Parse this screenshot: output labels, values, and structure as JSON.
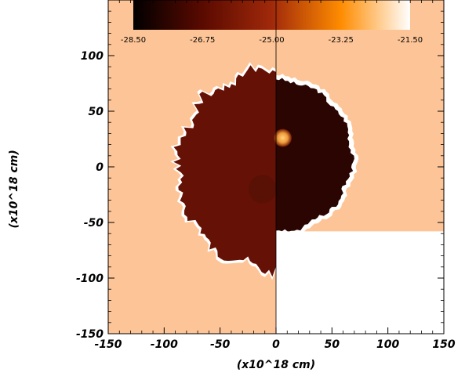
{
  "chart_data": {
    "type": "heatmap",
    "title": "",
    "xlabel": "(x10^18 cm)",
    "ylabel": "(x10^18 cm)",
    "xlim": [
      -150,
      150
    ],
    "ylim": [
      -150,
      150
    ],
    "x_ticks": [
      -150,
      -100,
      -50,
      0,
      50,
      100,
      150
    ],
    "y_ticks": [
      -150,
      -100,
      -50,
      0,
      50,
      100
    ],
    "colorbar": {
      "ticks": [
        "-28.50",
        "-26.75",
        "-25.00",
        "-23.25",
        "-21.50"
      ],
      "range": [
        -28.5,
        -21.5
      ],
      "colors": [
        "#000000",
        "#5a0a00",
        "#a0290a",
        "#ff8c00",
        "#ffffff"
      ],
      "position": "top"
    },
    "background_color": "#fdc597",
    "panels": [
      {
        "name": "left",
        "x_range": [
          -150,
          0
        ],
        "y_range": [
          -150,
          150
        ],
        "fill": "#661106",
        "rim": "#ffffff",
        "shape_radius": 88
      },
      {
        "name": "upper-right",
        "x_range": [
          0,
          150
        ],
        "y_range": [
          -58,
          150
        ],
        "fill": "#2a0502",
        "rim": "#ffffff",
        "shape_radius": 68,
        "hot_core": {
          "x": 6,
          "y": 26,
          "radius": 8,
          "color": "#f6a850"
        }
      },
      {
        "name": "lower-right-blank",
        "x_range": [
          0,
          150
        ],
        "y_range": [
          -150,
          -58
        ],
        "fill": "#ffffff"
      }
    ]
  }
}
